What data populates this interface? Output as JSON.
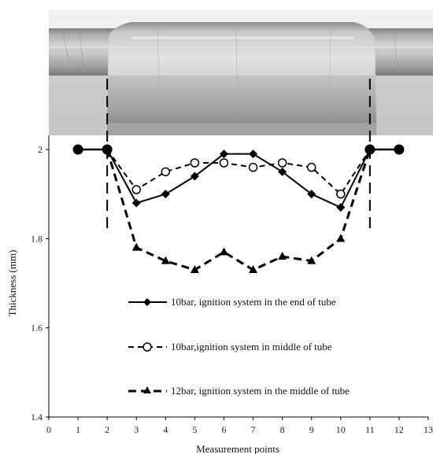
{
  "chart_data": {
    "type": "line",
    "xlabel": "Measurement points",
    "ylabel": "Thickness (mm)",
    "xlim": [
      0,
      13
    ],
    "ylim": [
      1.4,
      2.0
    ],
    "xticks": [
      0,
      1,
      2,
      3,
      4,
      5,
      6,
      7,
      8,
      9,
      10,
      11,
      12,
      13
    ],
    "yticks": [
      "1.4",
      "1.6",
      "1.8",
      "2"
    ],
    "yticks_values": [
      1.4,
      1.6,
      1.8,
      2.0
    ],
    "grid": false,
    "legend_placement": "center",
    "x": [
      3,
      4,
      5,
      6,
      7,
      8,
      9,
      10
    ],
    "series": [
      {
        "name": "10bar, ignition system in the end of tube",
        "marker": "diamond-filled",
        "line": "solid",
        "values": [
          1.88,
          1.9,
          1.94,
          1.99,
          1.99,
          1.95,
          1.9,
          1.87
        ]
      },
      {
        "name": "10bar,ignition system in middle of tube",
        "marker": "circle-open",
        "line": "dashed",
        "values": [
          1.91,
          1.95,
          1.97,
          1.97,
          1.96,
          1.97,
          1.96,
          1.9
        ]
      },
      {
        "name": "12bar, ignition system in the middle of tube",
        "marker": "triangle-filled",
        "line": "dashed",
        "values": [
          1.78,
          1.75,
          1.73,
          1.77,
          1.73,
          1.76,
          1.75,
          1.8
        ]
      }
    ],
    "shared_endpoints": {
      "marker": "circle-filled",
      "points": [
        [
          1,
          2.0
        ],
        [
          2,
          2.0
        ],
        [
          11,
          2.0
        ],
        [
          12,
          2.0
        ]
      ]
    },
    "vertical_markers": [
      2,
      11
    ],
    "colors": {
      "line": "#000000",
      "tube_photo": "#b8b8b8"
    }
  }
}
